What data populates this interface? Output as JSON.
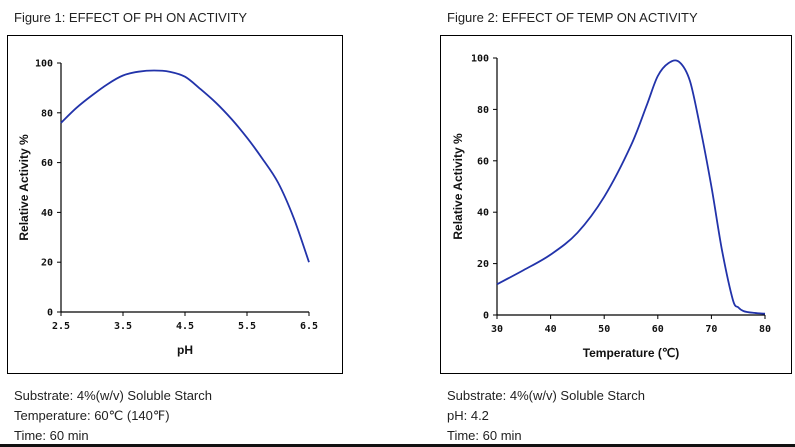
{
  "figure1": {
    "caption": "Figure 1: EFFECT OF PH ON ACTIVITY",
    "notes": [
      "Substrate: 4%(w/v) Soluble Starch",
      "Temperature: 60℃ (140℉)",
      "Time: 60 min"
    ]
  },
  "figure2": {
    "caption": "Figure 2: EFFECT OF TEMP ON ACTIVITY",
    "notes": [
      "Substrate: 4%(w/v) Soluble Starch",
      "pH: 4.2",
      "Time: 60 min"
    ]
  },
  "colors": {
    "line": "#2233aa",
    "axis": "#000000"
  },
  "chart_data": [
    {
      "type": "line",
      "xlabel": "pH",
      "ylabel": "Relative Activity %",
      "xlim": [
        2.5,
        6.5
      ],
      "ylim": [
        0,
        100
      ],
      "xticks": [
        "2.5",
        "3.5",
        "4.5",
        "5.5",
        "6.5"
      ],
      "yticks": [
        "0",
        "20",
        "40",
        "60",
        "80",
        "100"
      ],
      "grid": false,
      "series": [
        {
          "x": [
            2.5,
            2.75,
            3.0,
            3.25,
            3.5,
            3.75,
            4.0,
            4.25,
            4.5,
            4.75,
            5.0,
            5.25,
            5.5,
            5.75,
            6.0,
            6.25,
            6.5
          ],
          "y": [
            76,
            82,
            87,
            91.5,
            95,
            96.5,
            97,
            96.5,
            94.5,
            89.5,
            84,
            77.5,
            70,
            61.5,
            52,
            38,
            20
          ]
        }
      ]
    },
    {
      "type": "line",
      "xlabel": "Temperature (℃)",
      "ylabel": "Relative Activity %",
      "xlim": [
        30,
        80
      ],
      "ylim": [
        0,
        100
      ],
      "xticks": [
        "30",
        "40",
        "50",
        "60",
        "70",
        "80"
      ],
      "yticks": [
        "0",
        "20",
        "40",
        "60",
        "80",
        "100"
      ],
      "grid": false,
      "series": [
        {
          "x": [
            30,
            35,
            40,
            45,
            50,
            55,
            58,
            60,
            62,
            64,
            66,
            68,
            70,
            72,
            74,
            75,
            76,
            78,
            80
          ],
          "y": [
            12,
            17.5,
            23.5,
            32,
            46,
            66,
            82,
            93,
            98,
            98.5,
            91,
            72,
            50,
            25,
            6,
            3,
            1.5,
            0.8,
            0.5
          ]
        }
      ]
    }
  ]
}
